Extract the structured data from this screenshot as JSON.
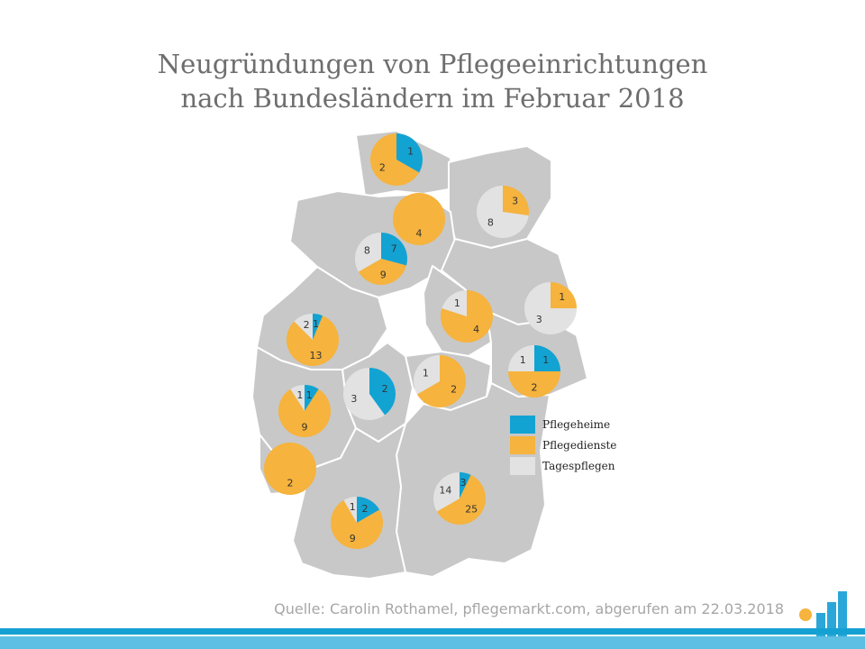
{
  "title_line1": "Neugründungen von Pflegeeinrichtungen",
  "title_line2": "nach Bundesländern im Februar 2018",
  "source": "Quelle: Carolin Rothamel, pflegemarkt.com, abgerufen am 22.03.2018",
  "colors": {
    "pflegeheime": "#12a3d3",
    "pflegedienste": "#f6b33d",
    "tagespflegen": "#e2e2e2",
    "map_fill": "#c8c8c8",
    "map_stroke": "#ffffff"
  },
  "chart_data": {
    "type": "pie",
    "series": [
      {
        "name": "Pflegeheime"
      },
      {
        "name": "Pflegedienste"
      },
      {
        "name": "Tagespflegen"
      }
    ],
    "legend": [
      "Pflegeheime",
      "Pflegedienste",
      "Tagespflegen"
    ],
    "legend_position": "right",
    "regions": [
      {
        "pflegeheime": 1,
        "pflegedienste": 2,
        "tagespflegen": 0
      },
      {
        "pflegeheime": 0,
        "pflegedienste": 4,
        "tagespflegen": 0
      },
      {
        "pflegeheime": 0,
        "pflegedienste": 3,
        "tagespflegen": 8
      },
      {
        "pflegeheime": 7,
        "pflegedienste": 9,
        "tagespflegen": 8
      },
      {
        "pflegeheime": 0,
        "pflegedienste": 1,
        "tagespflegen": 3
      },
      {
        "pflegeheime": 0,
        "pflegedienste": 4,
        "tagespflegen": 1
      },
      {
        "pflegeheime": 1,
        "pflegedienste": 13,
        "tagespflegen": 2
      },
      {
        "pflegeheime": 1,
        "pflegedienste": 2,
        "tagespflegen": 1
      },
      {
        "pflegeheime": 2,
        "pflegedienste": 0,
        "tagespflegen": 3
      },
      {
        "pflegeheime": 0,
        "pflegedienste": 2,
        "tagespflegen": 1
      },
      {
        "pflegeheime": 1,
        "pflegedienste": 9,
        "tagespflegen": 1
      },
      {
        "pflegeheime": 0,
        "pflegedienste": 2,
        "tagespflegen": 0
      },
      {
        "pflegeheime": 3,
        "pflegedienste": 25,
        "tagespflegen": 14
      },
      {
        "pflegeheime": 2,
        "pflegedienste": 9,
        "tagespflegen": 1
      }
    ]
  }
}
